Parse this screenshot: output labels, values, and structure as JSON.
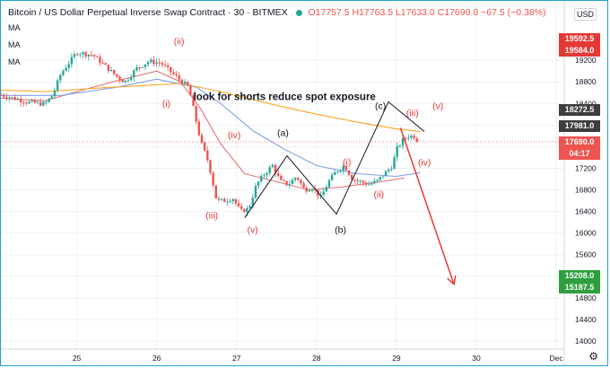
{
  "header": {
    "title": "Bitcoin / US Dollar Perpetual Inverse Swap Contract · 30 · BITMEX",
    "ohlc": "O17757.5 H17763.5 L17633.0 C17690.0 −67.5 (−0.38%)",
    "currency": "USD",
    "ma_labels": [
      "MA",
      "MA",
      "MA"
    ]
  },
  "price_labels": [
    {
      "value": 19592.5,
      "text": "19592.5",
      "color": "#e53935"
    },
    {
      "value": 19584.0,
      "text": "19584.0",
      "color": "#e53935"
    },
    {
      "value": 18272.5,
      "text": "18272.5",
      "color": "#3d3d3d"
    },
    {
      "value": 17981.0,
      "text": "17981.0",
      "color": "#3d3d3d"
    },
    {
      "value": 17690.0,
      "text": "17690.0",
      "color": "#ef5350"
    },
    {
      "value": 17520.0,
      "text": "04:17",
      "color": "#ef5350"
    },
    {
      "value": 15208.0,
      "text": "15208.0",
      "color": "#2e9e3e"
    },
    {
      "value": 15187.5,
      "text": "15187.5",
      "color": "#2e9e3e"
    }
  ],
  "chart_data": {
    "type": "candlestick",
    "title": "Bitcoin / US Dollar Perpetual Inverse Swap Contract · 30 · BITMEX",
    "y_axis": {
      "ticks": [
        19200,
        18800,
        18400,
        18000,
        17600,
        17200,
        16800,
        16400,
        16000,
        15600,
        15200,
        14800,
        14400,
        14000
      ],
      "ylim": [
        13850,
        20300
      ],
      "side": "right"
    },
    "x_axis": {
      "ticks": [
        {
          "day": 25,
          "label": "25"
        },
        {
          "day": 26,
          "label": "26"
        },
        {
          "day": 27,
          "label": "27"
        },
        {
          "day": 28,
          "label": "28"
        },
        {
          "day": 29,
          "label": "29"
        },
        {
          "day": 30,
          "label": "30"
        },
        {
          "day": 31,
          "label": "Dec"
        }
      ],
      "xlim": [
        24.05,
        31.1
      ]
    },
    "grid": true,
    "close_path": [
      [
        24.05,
        18560
      ],
      [
        24.2,
        18500
      ],
      [
        24.4,
        18420
      ],
      [
        24.6,
        18390
      ],
      [
        24.7,
        18560
      ],
      [
        24.8,
        18950
      ],
      [
        24.9,
        19150
      ],
      [
        25.0,
        19350
      ],
      [
        25.1,
        19320
      ],
      [
        25.2,
        19300
      ],
      [
        25.35,
        19100
      ],
      [
        25.5,
        18900
      ],
      [
        25.6,
        18800
      ],
      [
        25.75,
        19050
      ],
      [
        25.9,
        19180
      ],
      [
        26.05,
        19150
      ],
      [
        26.2,
        18950
      ],
      [
        26.4,
        18700
      ],
      [
        26.55,
        17700
      ],
      [
        26.65,
        17300
      ],
      [
        26.75,
        16600
      ],
      [
        26.85,
        16600
      ],
      [
        26.95,
        16650
      ],
      [
        27.05,
        16400
      ],
      [
        27.15,
        16450
      ],
      [
        27.25,
        16900
      ],
      [
        27.35,
        17100
      ],
      [
        27.45,
        17250
      ],
      [
        27.55,
        16950
      ],
      [
        27.65,
        16900
      ],
      [
        27.75,
        17050
      ],
      [
        27.85,
        16800
      ],
      [
        27.95,
        16850
      ],
      [
        28.05,
        16650
      ],
      [
        28.15,
        16950
      ],
      [
        28.25,
        17150
      ],
      [
        28.35,
        17250
      ],
      [
        28.45,
        17000
      ],
      [
        28.55,
        16950
      ],
      [
        28.65,
        16900
      ],
      [
        28.75,
        16950
      ],
      [
        28.85,
        17100
      ],
      [
        28.95,
        17250
      ],
      [
        29.0,
        17550
      ],
      [
        29.08,
        17720
      ],
      [
        29.15,
        17800
      ],
      [
        29.22,
        17790
      ],
      [
        29.28,
        17690
      ]
    ],
    "ma_series": [
      {
        "color": "#e57373",
        "points": [
          [
            24.05,
            18500
          ],
          [
            24.6,
            18450
          ],
          [
            25.0,
            18620
          ],
          [
            25.5,
            18820
          ],
          [
            26.0,
            19000
          ],
          [
            26.3,
            18800
          ],
          [
            26.55,
            18300
          ],
          [
            26.8,
            17650
          ],
          [
            27.1,
            17100
          ],
          [
            27.5,
            16950
          ],
          [
            27.9,
            16800
          ],
          [
            28.3,
            16850
          ],
          [
            28.8,
            16950
          ],
          [
            29.1,
            17020
          ]
        ]
      },
      {
        "color": "#7ea2ec",
        "points": [
          [
            24.05,
            18550
          ],
          [
            24.8,
            18550
          ],
          [
            25.5,
            18700
          ],
          [
            26.0,
            18850
          ],
          [
            26.5,
            18700
          ],
          [
            26.8,
            18400
          ],
          [
            27.2,
            17900
          ],
          [
            27.6,
            17550
          ],
          [
            28.0,
            17250
          ],
          [
            28.5,
            17100
          ],
          [
            29.0,
            17050
          ],
          [
            29.3,
            17120
          ]
        ]
      },
      {
        "color": "#f5a623",
        "points": [
          [
            24.05,
            18650
          ],
          [
            24.6,
            18620
          ],
          [
            25.2,
            18680
          ],
          [
            25.8,
            18730
          ],
          [
            26.3,
            18770
          ],
          [
            26.8,
            18620
          ],
          [
            27.4,
            18400
          ],
          [
            28.0,
            18200
          ],
          [
            28.6,
            18030
          ],
          [
            29.0,
            17930
          ],
          [
            29.3,
            17880
          ]
        ]
      }
    ],
    "annotations": [
      {
        "text": "look for shorts reduce spot exposure",
        "x": 27.6,
        "y": 18460,
        "color": "#131722",
        "bold": true
      },
      {
        "text": "(ii)",
        "x": 26.28,
        "y": 19490,
        "color": "#e53935"
      },
      {
        "text": "(i)",
        "x": 26.12,
        "y": 18340,
        "color": "#e53935"
      },
      {
        "text": "(iv)",
        "x": 26.97,
        "y": 17760,
        "color": "#e53935"
      },
      {
        "text": "(iii)",
        "x": 26.69,
        "y": 16270,
        "color": "#e53935"
      },
      {
        "text": "(v)",
        "x": 27.2,
        "y": 16000,
        "color": "#e53935"
      },
      {
        "text": "(a)",
        "x": 27.58,
        "y": 17800,
        "color": "#131722"
      },
      {
        "text": "(b)",
        "x": 28.3,
        "y": 16000,
        "color": "#131722"
      },
      {
        "text": "(c)",
        "x": 28.8,
        "y": 18300,
        "color": "#131722"
      },
      {
        "text": "(i)",
        "x": 28.38,
        "y": 17260,
        "color": "#e53935"
      },
      {
        "text": "(ii)",
        "x": 28.78,
        "y": 16660,
        "color": "#e53935"
      },
      {
        "text": "(iii)",
        "x": 29.2,
        "y": 18160,
        "color": "#e53935"
      },
      {
        "text": "(iv)",
        "x": 29.35,
        "y": 17250,
        "color": "#e53935"
      },
      {
        "text": "(v)",
        "x": 29.52,
        "y": 18300,
        "color": "#e53935"
      }
    ],
    "zigzag": [
      [
        27.1,
        16280
      ],
      [
        27.63,
        17430
      ],
      [
        28.25,
        16350
      ],
      [
        28.9,
        18430
      ],
      [
        29.35,
        17880
      ]
    ],
    "arrow": [
      [
        29.05,
        17950
      ],
      [
        29.72,
        15050
      ]
    ]
  }
}
